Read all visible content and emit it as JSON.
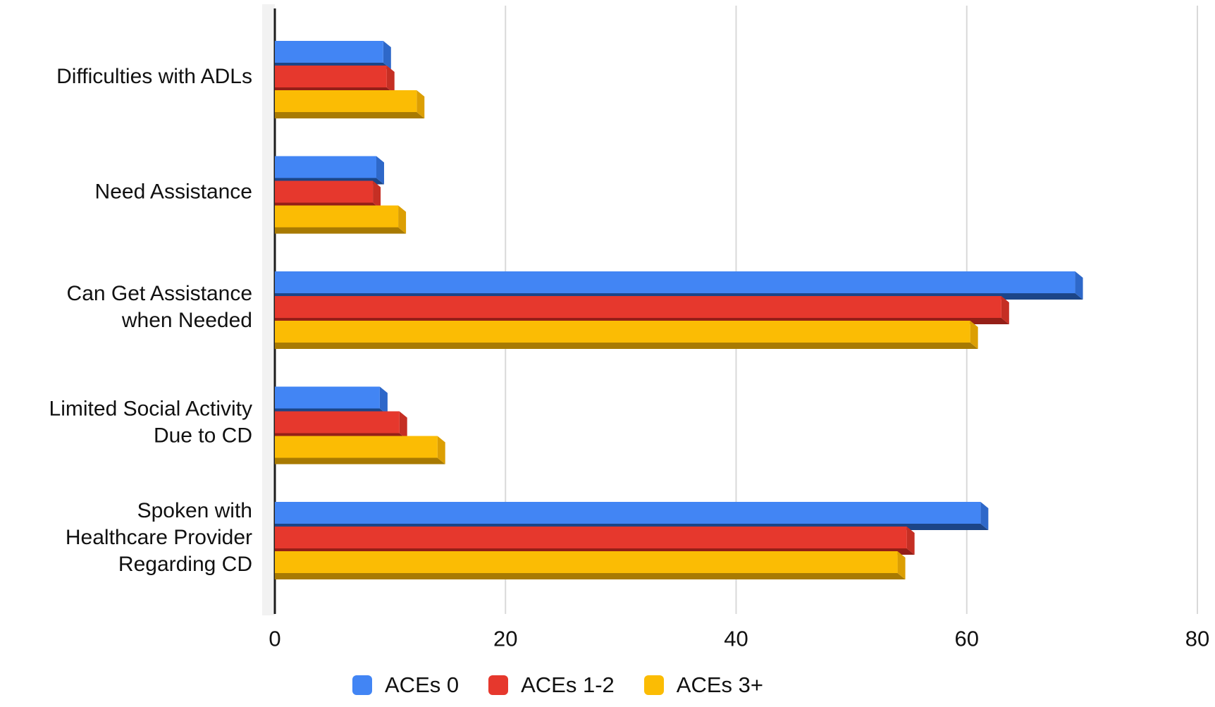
{
  "chart_data": {
    "type": "bar",
    "orientation": "horizontal",
    "title": "",
    "xlabel": "",
    "ylabel": "",
    "grid": true,
    "legend_position": "bottom",
    "xlim": [
      0,
      80
    ],
    "x_ticks": [
      0,
      20,
      40,
      60,
      80
    ],
    "x_tick_labels": [
      "0",
      "20",
      "40",
      "60",
      "80"
    ],
    "categories": [
      "Difficulties with ADLs",
      "Need Assistance",
      "Can Get Assistance when Needed",
      "Limited Social Activity Due to CD",
      "Spoken with Healthcare Provider Regarding CD"
    ],
    "category_label_lines": [
      [
        "Difficulties with ADLs"
      ],
      [
        "Need Assistance"
      ],
      [
        "Can Get Assistance",
        "when Needed"
      ],
      [
        "Limited Social Activity",
        "Due to CD"
      ],
      [
        "Spoken with",
        "Healthcare Provider",
        "Regarding CD"
      ]
    ],
    "series": [
      {
        "name": "ACEs 0",
        "color": "#4285F4",
        "color_end_face": "#2E68C9",
        "color_bottom_face": "#1C4587",
        "values": [
          9.4,
          8.8,
          69.4,
          9.1,
          61.2
        ]
      },
      {
        "name": "ACEs 1-2",
        "color": "#E6382D",
        "color_end_face": "#C52F24",
        "color_bottom_face": "#941F17",
        "values": [
          9.7,
          8.5,
          63.0,
          10.8,
          54.8
        ]
      },
      {
        "name": "ACEs 3+",
        "color": "#FBBC04",
        "color_end_face": "#DC9F03",
        "color_bottom_face": "#A87A02",
        "values": [
          12.3,
          10.7,
          60.3,
          14.1,
          54.0
        ]
      }
    ],
    "colors": {
      "axis_line": "#1c1c1c",
      "gridline": "#d9d9d9",
      "wall": "#f2f2f2",
      "text": "#111111"
    }
  }
}
